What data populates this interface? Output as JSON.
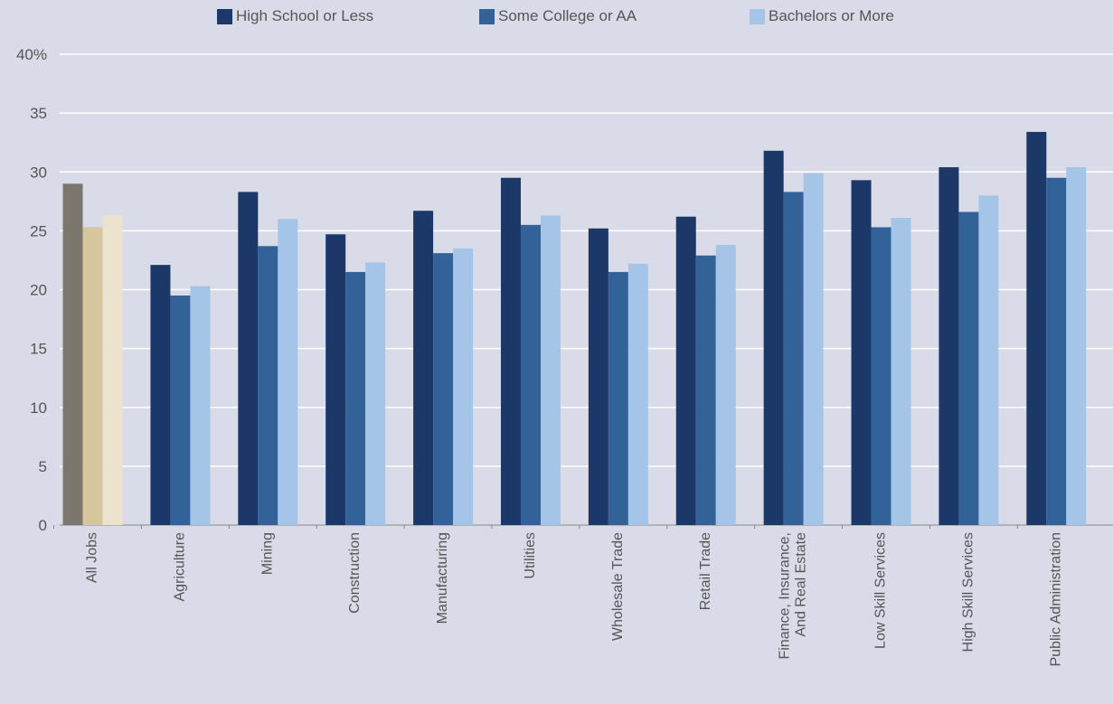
{
  "chart_data": {
    "type": "bar",
    "categories": [
      [
        "All Jobs"
      ],
      [
        "Agriculture"
      ],
      [
        "Mining"
      ],
      [
        "Construction"
      ],
      [
        "Manufacturing"
      ],
      [
        "Utilities"
      ],
      [
        "Wholesale Trade"
      ],
      [
        "Retail Trade"
      ],
      [
        "Finance, Insurance,",
        "And Real Estate"
      ],
      [
        "Low Skill Services"
      ],
      [
        "High Skill Services"
      ],
      [
        "Public Administration"
      ]
    ],
    "series": [
      {
        "name": "High School or Less",
        "color": "#1b3869",
        "values": [
          29.0,
          22.1,
          28.3,
          24.7,
          26.7,
          29.5,
          25.2,
          26.2,
          31.8,
          29.3,
          30.4,
          33.4
        ]
      },
      {
        "name": "Some College or AA",
        "color": "#336298",
        "values": [
          25.3,
          19.5,
          23.7,
          21.5,
          23.1,
          25.5,
          21.5,
          22.9,
          28.3,
          25.3,
          26.6,
          29.5
        ]
      },
      {
        "name": "Bachelors or More",
        "color": "#a4c5e8",
        "values": [
          26.3,
          20.3,
          26.0,
          22.3,
          23.5,
          26.3,
          22.2,
          23.8,
          29.9,
          26.1,
          28.0,
          30.4
        ]
      }
    ],
    "highlight_first_category_colors": [
      "#7b776e",
      "#d5c69e",
      "#ebe3cd"
    ],
    "y_ticks": [
      "0",
      "5",
      "10",
      "15",
      "20",
      "25",
      "30",
      "35",
      "40%"
    ],
    "ylim": [
      0,
      40
    ],
    "grid": true,
    "legend_position": "top-center",
    "gridline_color": "#ffffff",
    "axis_color": "#888888"
  }
}
